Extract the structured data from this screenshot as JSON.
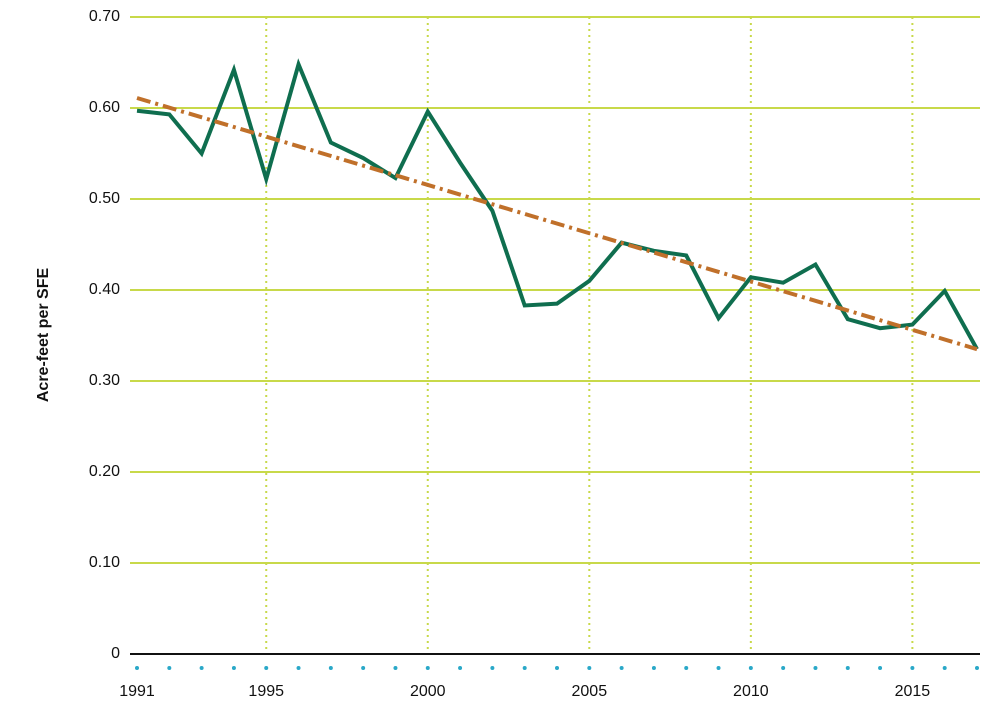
{
  "chart_data": {
    "type": "line",
    "y_label": "Acre-feet per SFE",
    "x": [
      1991,
      1992,
      1993,
      1994,
      1995,
      1996,
      1997,
      1998,
      1999,
      2000,
      2001,
      2002,
      2003,
      2004,
      2005,
      2006,
      2007,
      2008,
      2009,
      2010,
      2011,
      2012,
      2013,
      2014,
      2015,
      2016,
      2017
    ],
    "series": [
      {
        "color": "#0f6e4f",
        "values": [
          0.597,
          0.593,
          0.55,
          0.642,
          0.522,
          0.648,
          0.562,
          0.545,
          0.523,
          0.596,
          0.54,
          0.487,
          0.383,
          0.385,
          0.41,
          0.452,
          0.443,
          0.438,
          0.369,
          0.414,
          0.408,
          0.428,
          0.368,
          0.358,
          0.362,
          0.399,
          0.335
        ]
      },
      {
        "color": "#c0702a",
        "style": "dash-dot",
        "x": [
          1991,
          2017
        ],
        "values": [
          0.611,
          0.335
        ]
      }
    ],
    "xlim": [
      1991,
      2017
    ],
    "xticks": [
      1991,
      1995,
      2000,
      2005,
      2010,
      2015
    ],
    "ylim": [
      0,
      0.7
    ],
    "yticks": [
      0,
      {
        "value": 0.1,
        "label": "0.10"
      },
      {
        "value": 0.2,
        "label": "0.20"
      },
      {
        "value": 0.3,
        "label": "0.30"
      },
      {
        "value": 0.4,
        "label": "0.40"
      },
      {
        "value": 0.5,
        "label": "0.50"
      },
      {
        "value": 0.6,
        "label": "0.60"
      },
      {
        "value": 0.7,
        "label": "0.70"
      }
    ],
    "grid": true,
    "grid_color": "#c8d94a",
    "minor_tick_color": "#2aa8c8"
  }
}
